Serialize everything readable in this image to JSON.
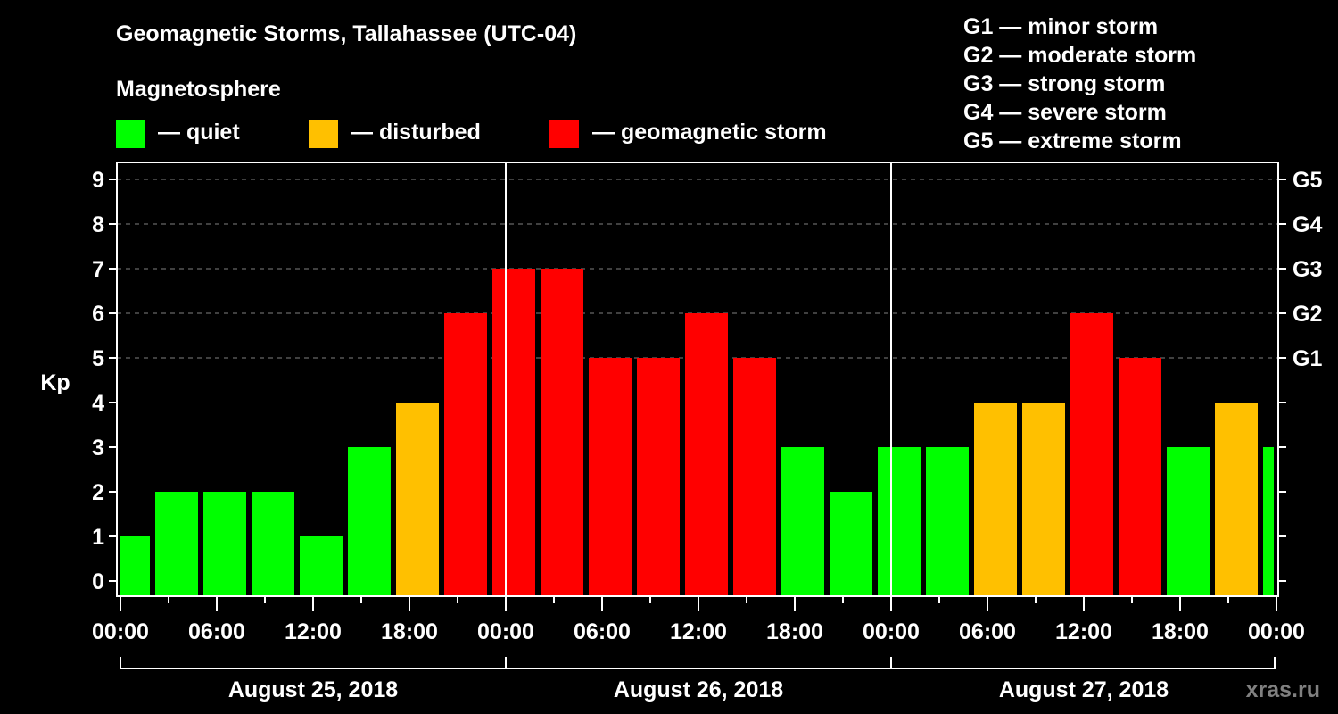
{
  "title": "Geomagnetic Storms, Tallahassee (UTC-04)",
  "subtitle": "Magnetosphere",
  "legend": [
    {
      "label": "— quiet",
      "color": "#00ff00"
    },
    {
      "label": "— disturbed",
      "color": "#ffc000"
    },
    {
      "label": "— geomagnetic storm",
      "color": "#ff0000"
    }
  ],
  "g_scale": [
    "G1 — minor storm",
    "G2 — moderate storm",
    "G3 — strong storm",
    "G4 — severe storm",
    "G5 — extreme storm"
  ],
  "watermark": "xras.ru",
  "chart_data": {
    "type": "bar",
    "title": "Geomagnetic Storms, Tallahassee (UTC-04)",
    "ylabel": "Kp",
    "ylim": [
      0,
      9
    ],
    "yticks": [
      "0",
      "1",
      "2",
      "3",
      "4",
      "5",
      "6",
      "7",
      "8",
      "9"
    ],
    "right_ticks": [
      {
        "kp": 5,
        "label": "G1"
      },
      {
        "kp": 6,
        "label": "G2"
      },
      {
        "kp": 7,
        "label": "G3"
      },
      {
        "kp": 8,
        "label": "G4"
      },
      {
        "kp": 9,
        "label": "G5"
      }
    ],
    "grid": "dashed horizontal at Kp 5-9",
    "xtick_labels": [
      "00:00",
      "06:00",
      "12:00",
      "18:00",
      "00:00",
      "06:00",
      "12:00",
      "18:00",
      "00:00",
      "06:00",
      "12:00",
      "18:00",
      "00:00"
    ],
    "x_range_hours": [
      0,
      72
    ],
    "days": [
      "August 25, 2018",
      "August 26, 2018",
      "August 27, 2018"
    ],
    "bar_interval_hours": 3,
    "first_bar_center_hour": 0.5,
    "values": [
      1,
      2,
      2,
      2,
      1,
      3,
      4,
      6,
      7,
      7,
      5,
      5,
      6,
      5,
      3,
      2,
      3,
      3,
      4,
      4,
      6,
      5,
      3,
      4,
      3
    ],
    "colors": {
      "quiet": "#00ff00",
      "disturbed": "#ffc000",
      "storm": "#ff0000"
    },
    "thresholds": {
      "disturbed_min": 4,
      "storm_min": 5
    }
  }
}
